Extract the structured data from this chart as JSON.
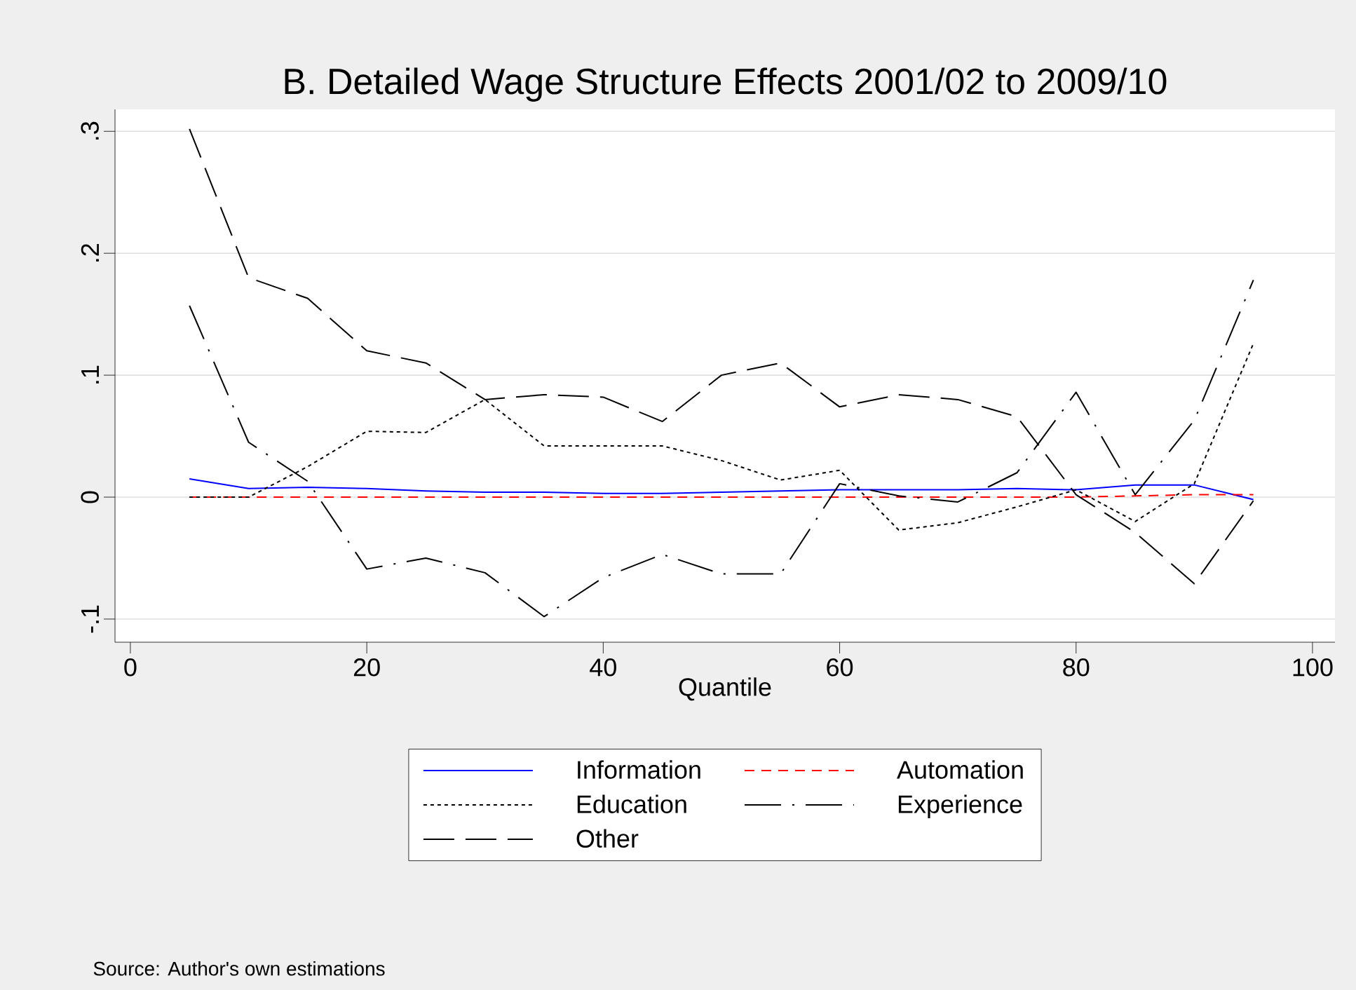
{
  "chart_data": {
    "type": "line",
    "title": "B. Detailed Wage Structure Effects 2001/02 to 2009/10",
    "xlabel": "Quantile",
    "x": [
      5,
      10,
      15,
      20,
      25,
      30,
      35,
      40,
      45,
      50,
      55,
      60,
      65,
      70,
      75,
      80,
      85,
      90,
      95
    ],
    "series": [
      {
        "name": "Information",
        "color": "#0000ff",
        "line_style": "solid",
        "values": [
          0.015,
          0.007,
          0.008,
          0.007,
          0.005,
          0.004,
          0.004,
          0.003,
          0.003,
          0.004,
          0.005,
          0.006,
          0.006,
          0.006,
          0.007,
          0.006,
          0.01,
          0.01,
          -0.002
        ]
      },
      {
        "name": "Automation",
        "color": "#ff0000",
        "line_style": "dashed",
        "values": [
          0,
          0,
          0,
          0,
          0,
          0,
          0,
          0,
          0,
          0,
          0,
          0,
          0,
          0,
          0,
          0,
          0.001,
          0.002,
          0.002
        ]
      },
      {
        "name": "Education",
        "color": "#000000",
        "line_style": "dotted",
        "values": [
          0,
          0,
          0.025,
          0.054,
          0.053,
          0.08,
          0.042,
          0.042,
          0.042,
          0.03,
          0.014,
          0.022,
          -0.027,
          -0.021,
          -0.008,
          0.006,
          -0.02,
          0.011,
          0.126
        ]
      },
      {
        "name": "Experience",
        "color": "#000000",
        "line_style": "dashdot",
        "values": [
          0.157,
          0.045,
          0.013,
          -0.059,
          -0.05,
          -0.062,
          -0.098,
          -0.066,
          -0.047,
          -0.063,
          -0.063,
          0.011,
          0.001,
          -0.004,
          0.02,
          0.086,
          0.002,
          0.063,
          0.178
        ]
      },
      {
        "name": "Other",
        "color": "#000000",
        "line_style": "longdash",
        "values": [
          0.302,
          0.18,
          0.163,
          0.12,
          0.11,
          0.08,
          0.084,
          0.082,
          0.062,
          0.1,
          0.11,
          0.074,
          0.084,
          0.08,
          0.066,
          0.002,
          -0.029,
          -0.071,
          -0.003
        ]
      }
    ],
    "xlim": [
      -1.3,
      101.9
    ],
    "ylim": [
      -0.119,
      0.318
    ],
    "xticks": [
      0,
      20,
      40,
      60,
      80,
      100
    ],
    "yticks": [
      {
        "value": -0.1,
        "label": "-.1"
      },
      {
        "value": 0,
        "label": "0"
      },
      {
        "value": 0.1,
        "label": ".1"
      },
      {
        "value": 0.2,
        "label": ".2"
      },
      {
        "value": 0.3,
        "label": ".3"
      }
    ],
    "grid": "y",
    "legend": "bottom",
    "marker": "none",
    "annotations": [
      "Source: Author's own estimations"
    ]
  }
}
